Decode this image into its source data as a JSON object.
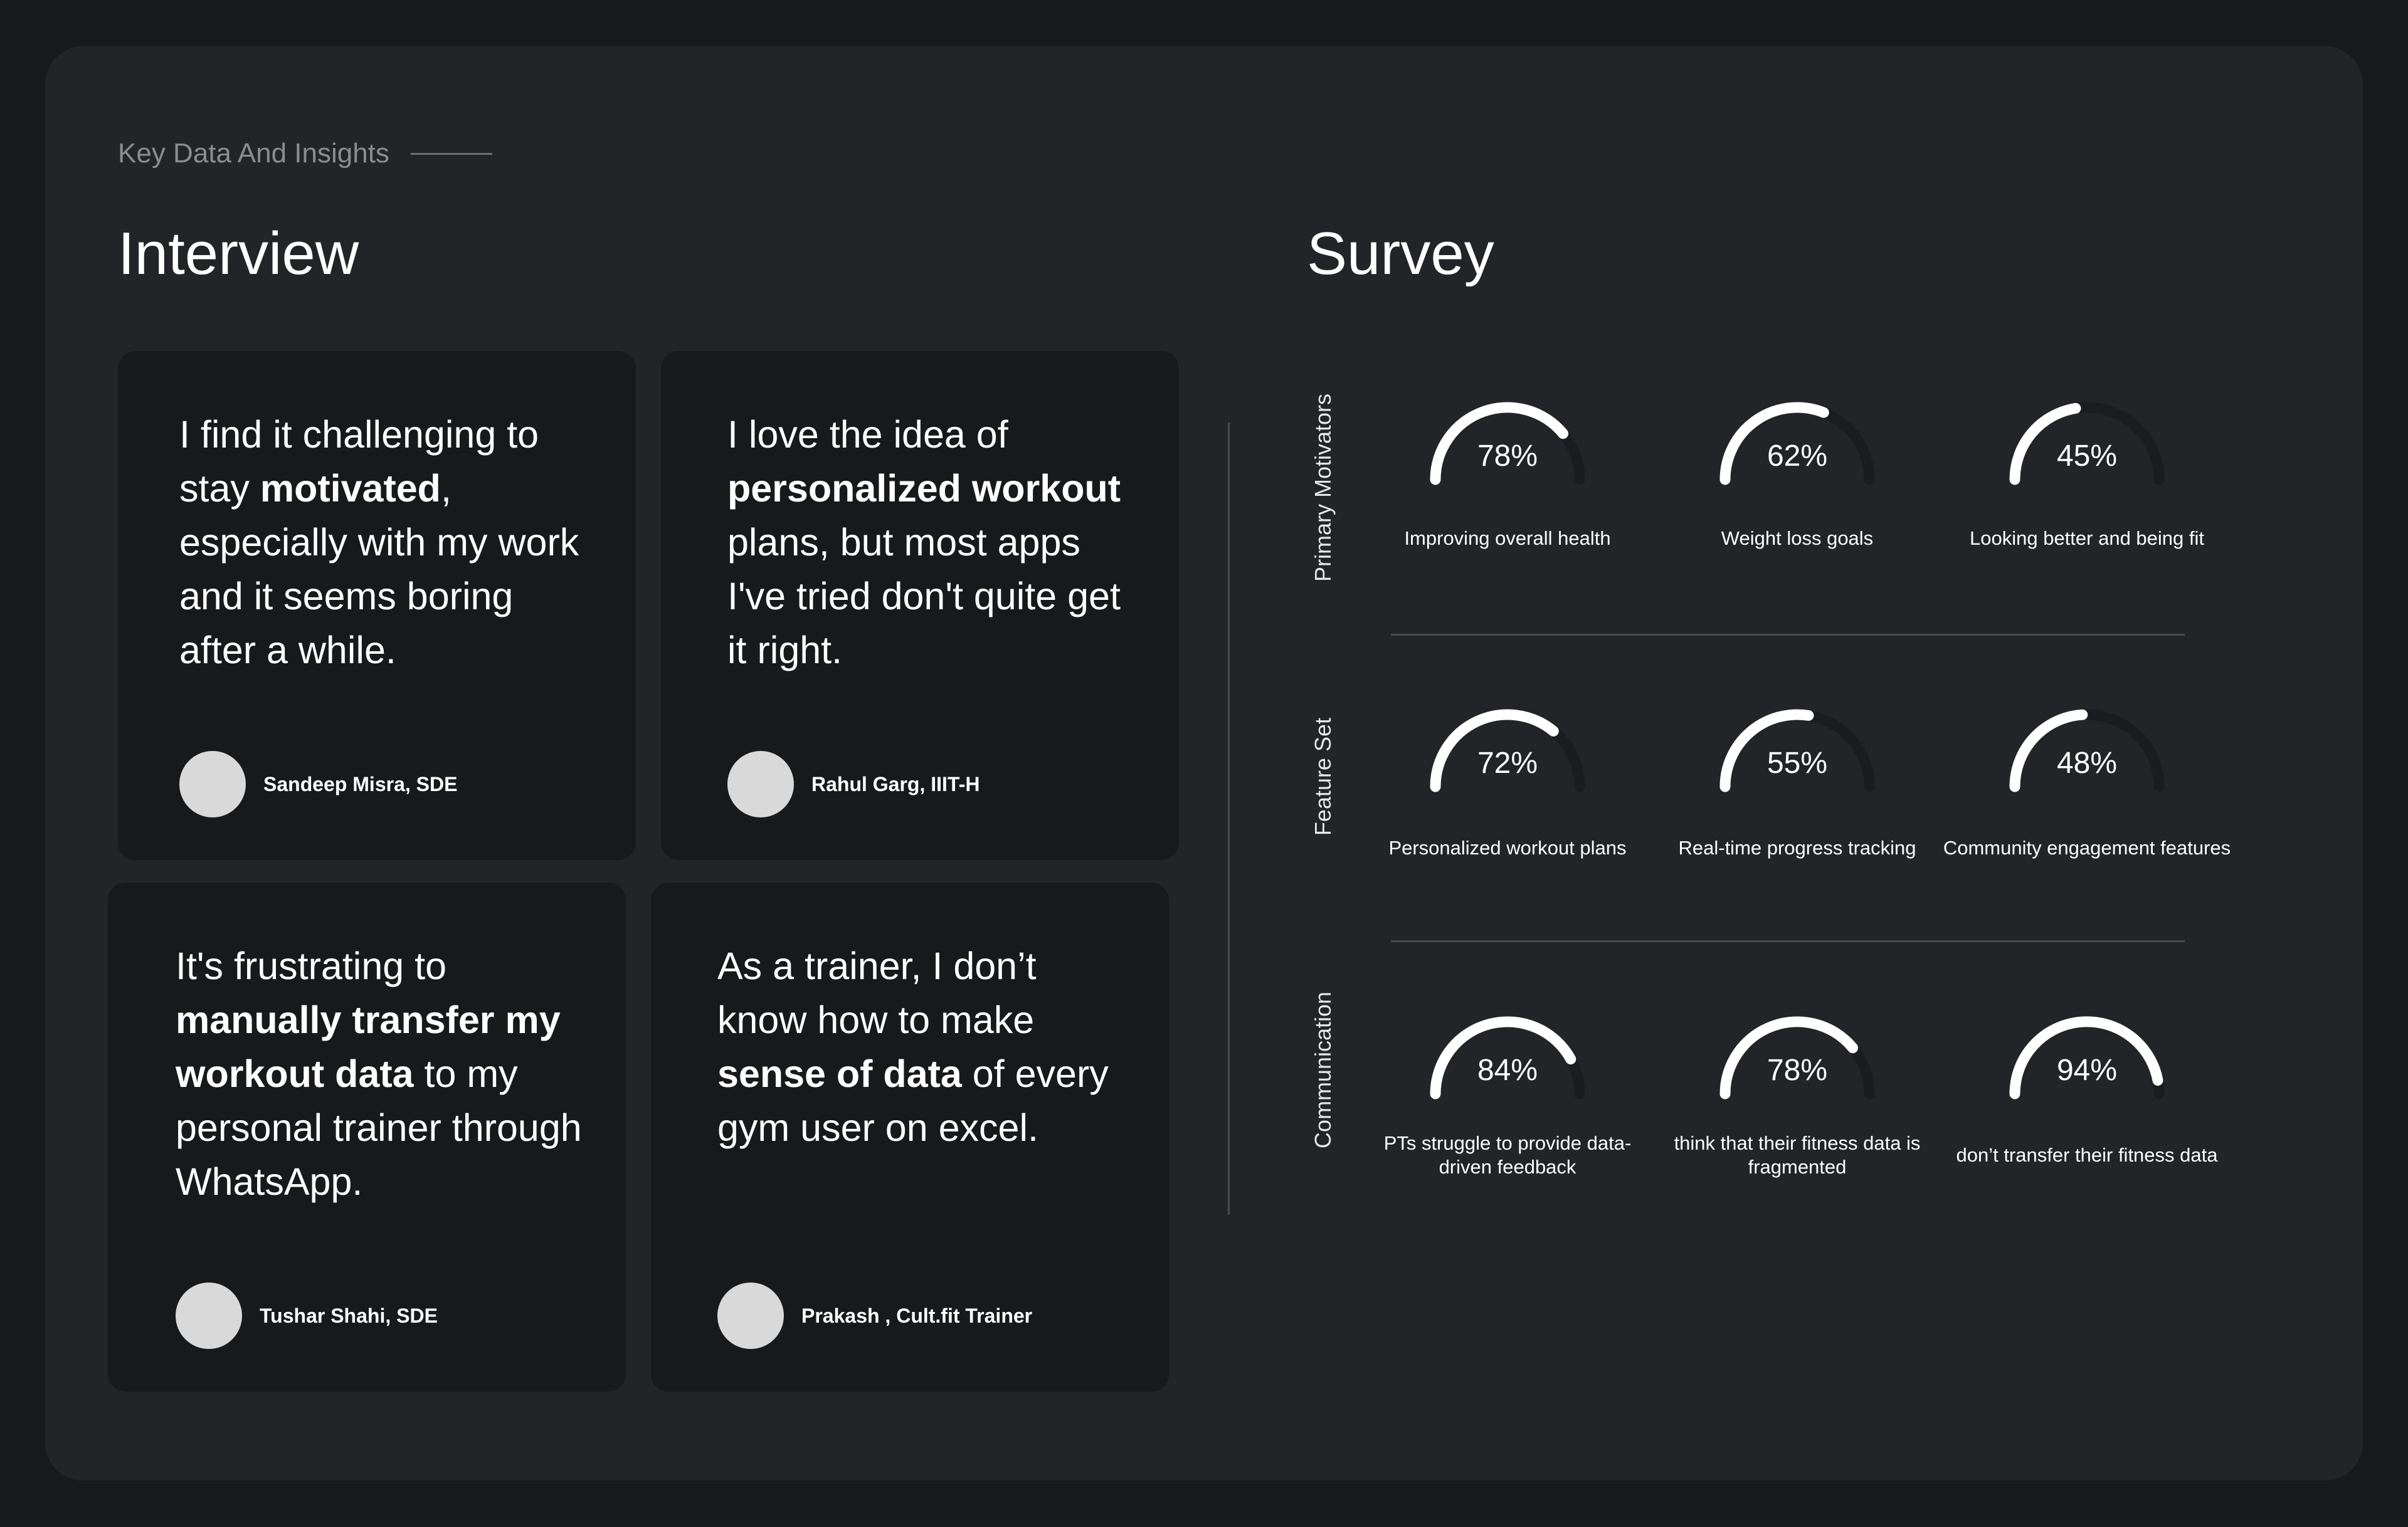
{
  "header": {
    "eyebrow": "Key Data And Insights"
  },
  "interview": {
    "title": "Interview",
    "cards": [
      {
        "quote": [
          "I find it challenging to stay ",
          {
            "b": "motivated"
          },
          ", especially with my work and it seems boring after a while."
        ],
        "author": "Sandeep Misra, SDE"
      },
      {
        "quote": [
          "I love the idea of ",
          {
            "b": "personalized workout"
          },
          " plans, but most apps I've tried don't quite get it right."
        ],
        "author": "Rahul Garg, IIIT-H"
      },
      {
        "quote": [
          "It's frustrating to ",
          {
            "b": "manually transfer my workout data"
          },
          " to my personal trainer through WhatsApp."
        ],
        "author": "Tushar Shahi, SDE"
      },
      {
        "quote": [
          "As a trainer, I don’t know how to make ",
          {
            "b": "sense of data"
          },
          " of every gym user on excel."
        ],
        "author": "Prakash , Cult.fit Trainer"
      }
    ]
  },
  "survey": {
    "title": "Survey",
    "colors": {
      "arc": "#ffffff",
      "track": "#1b1c1f"
    },
    "rows": [
      {
        "label": "Primary Motivators",
        "items": [
          {
            "value": 78,
            "display": "78%",
            "caption": "Improving overall health"
          },
          {
            "value": 62,
            "display": "62%",
            "caption": "Weight loss goals"
          },
          {
            "value": 45,
            "display": "45%",
            "caption": "Looking better and being fit"
          }
        ]
      },
      {
        "label": "Feature Set",
        "items": [
          {
            "value": 72,
            "display": "72%",
            "caption": "Personalized workout plans"
          },
          {
            "value": 55,
            "display": "55%",
            "caption": "Real-time progress tracking"
          },
          {
            "value": 48,
            "display": "48%",
            "caption": "Community engagement features"
          }
        ]
      },
      {
        "label": "Communication",
        "items": [
          {
            "value": 84,
            "display": "84%",
            "caption": "PTs struggle to provide data-driven feedback"
          },
          {
            "value": 78,
            "display": "78%",
            "caption": "think that their fitness data is fragmented"
          },
          {
            "value": 94,
            "display": "94%",
            "caption": "don’t transfer their fitness data"
          }
        ]
      }
    ]
  }
}
